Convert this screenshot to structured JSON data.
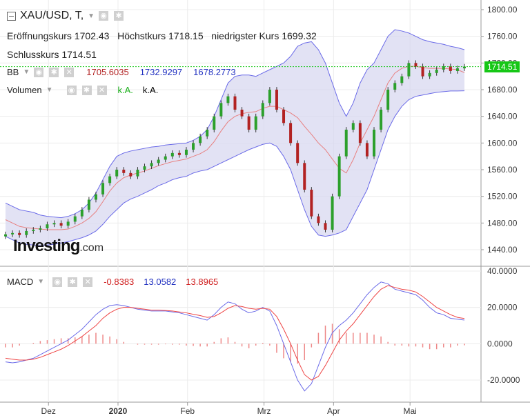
{
  "title": "XAU/USD, T,",
  "ohlc": {
    "open_label": "Eröffnungskurs",
    "open": "1702.43",
    "high_label": "Höchstkurs",
    "high": "1718.15",
    "low_label": "niedrigster Kurs",
    "low": "1699.32",
    "close_label": "Schlusskurs",
    "close": "1714.51"
  },
  "bb": {
    "label": "BB",
    "mid": "1705.6035",
    "upper": "1732.9297",
    "lower": "1678.2773"
  },
  "volume": {
    "label": "Volumen",
    "v1": "k.A.",
    "v2": "k.A."
  },
  "macd": {
    "label": "MACD",
    "hist": "-0.8383",
    "macd": "13.0582",
    "signal": "13.8965"
  },
  "last_price_tag": "1714.51",
  "logo": {
    "main": "Investing",
    "suffix": ".com"
  },
  "colors": {
    "up": "#2ca02c",
    "down": "#b22222",
    "band": "#d6d6f0",
    "band_line": "#6a6ae8",
    "ma": "#e88080",
    "macd_line": "#6a6ae8",
    "signal_line": "#e44"
  },
  "chart_data": [
    {
      "type": "candlestick",
      "title": "XAU/USD",
      "ylim": [
        1420,
        1800
      ],
      "y_ticks": [
        "1800.00",
        "1760.00",
        "1720.00",
        "1680.00",
        "1640.00",
        "1600.00",
        "1560.00",
        "1520.00",
        "1480.00",
        "1440.00"
      ],
      "x_ticks": [
        "Dez",
        "2020",
        "Feb",
        "Mrz",
        "Apr",
        "Mai"
      ],
      "series": [
        {
          "name": "Close",
          "values": [
            1463,
            1465,
            1462,
            1468,
            1470,
            1472,
            1478,
            1480,
            1476,
            1482,
            1490,
            1500,
            1515,
            1523,
            1540,
            1550,
            1560,
            1555,
            1550,
            1560,
            1565,
            1570,
            1575,
            1580,
            1585,
            1582,
            1590,
            1600,
            1610,
            1620,
            1640,
            1660,
            1670,
            1650,
            1640,
            1620,
            1640,
            1660,
            1680,
            1650,
            1630,
            1600,
            1570,
            1530,
            1490,
            1480,
            1470,
            1520,
            1580,
            1620,
            1630,
            1600,
            1580,
            1620,
            1650,
            1680,
            1690,
            1700,
            1720,
            1715,
            1700,
            1705,
            1710,
            1715,
            1708,
            1712,
            1714.51
          ]
        },
        {
          "name": "BB upper",
          "values": [
            1510,
            1505,
            1500,
            1498,
            1496,
            1492,
            1490,
            1489,
            1488,
            1490,
            1494,
            1500,
            1510,
            1525,
            1545,
            1565,
            1580,
            1585,
            1588,
            1590,
            1592,
            1594,
            1595,
            1597,
            1598,
            1599,
            1600,
            1604,
            1610,
            1620,
            1640,
            1665,
            1690,
            1700,
            1702,
            1702,
            1700,
            1705,
            1710,
            1715,
            1720,
            1730,
            1745,
            1750,
            1752,
            1740,
            1720,
            1690,
            1660,
            1640,
            1660,
            1690,
            1710,
            1720,
            1740,
            1760,
            1770,
            1768,
            1765,
            1760,
            1755,
            1752,
            1750,
            1748,
            1745,
            1743,
            1740
          ]
        },
        {
          "name": "BB lower",
          "values": [
            1460,
            1455,
            1450,
            1448,
            1447,
            1446,
            1447,
            1448,
            1450,
            1452,
            1455,
            1458,
            1462,
            1468,
            1478,
            1490,
            1500,
            1510,
            1516,
            1520,
            1525,
            1530,
            1536,
            1540,
            1545,
            1548,
            1550,
            1555,
            1558,
            1560,
            1565,
            1570,
            1575,
            1580,
            1585,
            1590,
            1594,
            1598,
            1600,
            1595,
            1580,
            1560,
            1530,
            1500,
            1475,
            1462,
            1460,
            1462,
            1465,
            1470,
            1490,
            1510,
            1530,
            1560,
            1590,
            1620,
            1640,
            1655,
            1665,
            1670,
            1672,
            1674,
            1676,
            1677,
            1678,
            1678,
            1678.28
          ]
        },
        {
          "name": "BB mid",
          "values": [
            1485,
            1480,
            1475,
            1473,
            1472,
            1471,
            1470,
            1470,
            1470,
            1471,
            1475,
            1480,
            1487,
            1497,
            1512,
            1528,
            1540,
            1548,
            1552,
            1555,
            1558,
            1562,
            1566,
            1569,
            1572,
            1574,
            1576,
            1580,
            1584,
            1590,
            1602,
            1618,
            1632,
            1640,
            1644,
            1646,
            1647,
            1652,
            1655,
            1655,
            1650,
            1645,
            1638,
            1625,
            1613,
            1600,
            1590,
            1576,
            1562,
            1555,
            1575,
            1600,
            1620,
            1640,
            1665,
            1690,
            1705,
            1712,
            1715,
            1715,
            1713,
            1712,
            1712,
            1712,
            1711,
            1710,
            1705.6
          ]
        },
        {
          "name": "MACD",
          "values": [
            -10,
            -10.5,
            -10,
            -9,
            -8,
            -6,
            -4,
            -2,
            0,
            2,
            5,
            8,
            12,
            16,
            19,
            21,
            21.5,
            21,
            20,
            19,
            18.5,
            18,
            18,
            18,
            17.5,
            17,
            16,
            15,
            14,
            13,
            16,
            20,
            23,
            22,
            19,
            17,
            18,
            20,
            18,
            10,
            0,
            -10,
            -20,
            -26,
            -22,
            -12,
            -2,
            6,
            10,
            13,
            17,
            22,
            27,
            31,
            34,
            33,
            30,
            29,
            28,
            27,
            24,
            20,
            17,
            16,
            14,
            13.5,
            13.06
          ]
        },
        {
          "name": "Signal",
          "values": [
            -8,
            -8.5,
            -9,
            -9,
            -8.5,
            -7.5,
            -6,
            -4.5,
            -3,
            -1,
            1.5,
            4,
            7,
            10,
            14,
            17,
            19,
            20,
            20,
            19.5,
            19,
            18.5,
            18.5,
            18.3,
            18,
            17.5,
            17,
            16.2,
            15.5,
            14.5,
            15,
            17,
            19.5,
            21,
            20.5,
            19.5,
            19,
            19.5,
            19,
            15,
            8,
            0,
            -9,
            -17,
            -20,
            -18,
            -12,
            -5,
            2,
            7,
            11,
            16,
            21,
            26,
            30,
            32,
            31,
            30,
            29.5,
            28.5,
            26,
            23,
            20,
            18,
            16,
            14.5,
            13.9
          ]
        },
        {
          "name": "Histogram",
          "values": [
            -2,
            -2,
            -1,
            0,
            0.5,
            1.5,
            2,
            2.5,
            3,
            3,
            3.5,
            4,
            5,
            6,
            5,
            4,
            2.5,
            1,
            0,
            -0.5,
            -0.5,
            -0.5,
            -0.5,
            -0.3,
            -0.5,
            -0.5,
            -1,
            -1.2,
            -1.5,
            -1.5,
            1,
            3,
            3.5,
            1,
            -1.5,
            -2.5,
            -1,
            0.5,
            -1,
            -5,
            -8,
            -10,
            -11,
            -9,
            -2,
            6,
            10,
            11,
            8,
            6,
            6,
            6,
            6,
            5,
            4,
            1,
            -1,
            -1,
            -1.5,
            -1.5,
            -2,
            -3,
            -3,
            -2,
            -2,
            -1,
            -0.84
          ]
        }
      ]
    },
    {
      "type": "line",
      "title": "MACD",
      "ylim": [
        -30,
        40
      ],
      "y_ticks": [
        "40.0000",
        "20.0000",
        "0.0000",
        "-20.0000"
      ]
    }
  ]
}
